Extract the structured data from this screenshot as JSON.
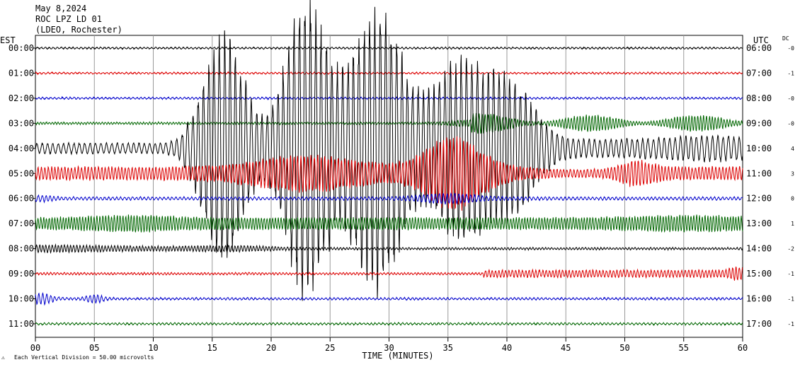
{
  "header": {
    "date": "May 8,2024",
    "station": "ROC LPZ LD 01",
    "network": "(LDEO, Rochester)"
  },
  "left_axis_label": "EST",
  "right_axis_label": "UTC",
  "dc_label": "DC",
  "xlabel": "TIME (MINUTES)",
  "footer": "Each Vertical Division =    50.00 microvolts",
  "chart_data": {
    "type": "line",
    "title": "",
    "xlabel": "TIME (MINUTES)",
    "ylabel": "EST",
    "xlim": [
      0,
      60
    ],
    "x_ticks": [
      "00",
      "05",
      "10",
      "15",
      "20",
      "25",
      "30",
      "35",
      "40",
      "45",
      "50",
      "55",
      "60"
    ],
    "grid": true,
    "series": [
      {
        "est": "00:00",
        "utc": "06:00",
        "dc": "-0",
        "color": "#000000",
        "amplitude": "low"
      },
      {
        "est": "01:00",
        "utc": "07:00",
        "dc": "-1",
        "color": "#dd0000",
        "amplitude": "low"
      },
      {
        "est": "02:00",
        "utc": "08:00",
        "dc": "-0",
        "color": "#0000cc",
        "amplitude": "low"
      },
      {
        "est": "03:00",
        "utc": "09:00",
        "dc": "-0",
        "color": "#006600",
        "amplitude": "low, rising after minute 37"
      },
      {
        "est": "04:00",
        "utc": "10:00",
        "dc": "4",
        "color": "#000000",
        "amplitude": "earthquake arrival near minute 12.5, large bursts 14-45"
      },
      {
        "est": "05:00",
        "utc": "11:00",
        "dc": "3",
        "color": "#dd0000",
        "amplitude": "high, peak near minute 35"
      },
      {
        "est": "06:00",
        "utc": "12:00",
        "dc": "0",
        "color": "#0000cc",
        "amplitude": "low"
      },
      {
        "est": "07:00",
        "utc": "13:00",
        "dc": "1",
        "color": "#006600",
        "amplitude": "moderate"
      },
      {
        "est": "08:00",
        "utc": "14:00",
        "dc": "-2",
        "color": "#000000",
        "amplitude": "moderate early, decaying"
      },
      {
        "est": "09:00",
        "utc": "15:00",
        "dc": "-1",
        "color": "#dd0000",
        "amplitude": "low, rising after minute 38"
      },
      {
        "est": "10:00",
        "utc": "16:00",
        "dc": "-1",
        "color": "#0000cc",
        "amplitude": "low"
      },
      {
        "est": "11:00",
        "utc": "17:00",
        "dc": "-1",
        "color": "#006600",
        "amplitude": "low"
      }
    ]
  }
}
